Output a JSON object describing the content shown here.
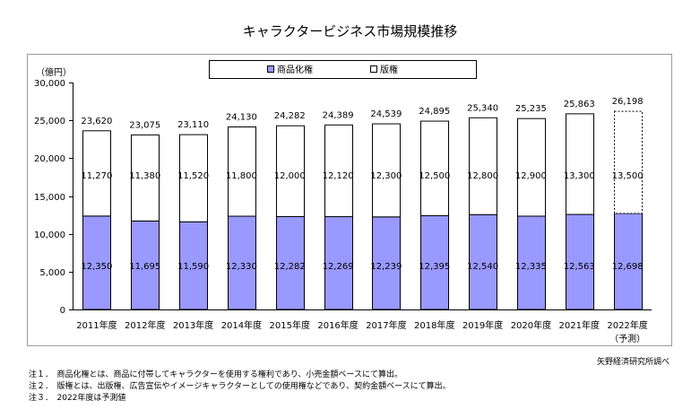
{
  "chart_data": {
    "type": "bar",
    "title": "キャラクタービジネス市場規模推移",
    "unit_label": "（億円）",
    "categories": [
      "2011年度",
      "2012年度",
      "2013年度",
      "2014年度",
      "2015年度",
      "2016年度",
      "2017年度",
      "2018年度",
      "2019年度",
      "2020年度",
      "2021年度",
      "2022年度"
    ],
    "forecast_note": "（予測）",
    "series": [
      {
        "name": "商品化権",
        "color": "#9999ff",
        "values": [
          12350,
          11695,
          11590,
          12330,
          12282,
          12269,
          12239,
          12395,
          12540,
          12335,
          12563,
          12698
        ]
      },
      {
        "name": "版権",
        "color": "#ffffff",
        "values": [
          11270,
          11380,
          11520,
          11800,
          12000,
          12120,
          12300,
          12500,
          12800,
          12900,
          13300,
          13500
        ]
      }
    ],
    "totals": [
      23620,
      23075,
      23110,
      24130,
      24282,
      24389,
      24539,
      24895,
      25340,
      25235,
      25863,
      26198
    ],
    "value_labels": {
      "lower": [
        "12,350",
        "11,695",
        "11,590",
        "12,330",
        "12,282",
        "12,269",
        "12,239",
        "12,395",
        "12,540",
        "12,335",
        "12,563",
        "12,698"
      ],
      "upper": [
        "11,270",
        "11,380",
        "11,520",
        "11,800",
        "12,000",
        "12,120",
        "12,300",
        "12,500",
        "12,800",
        "12,900",
        "13,300",
        "13,500"
      ],
      "totals": [
        "23,620",
        "23,075",
        "23,110",
        "24,130",
        "24,282",
        "24,389",
        "24,539",
        "24,895",
        "25,340",
        "25,235",
        "25,863",
        "26,198"
      ]
    },
    "ylim": [
      0,
      30000
    ],
    "yticks": [
      0,
      5000,
      10000,
      15000,
      20000,
      25000,
      30000
    ],
    "ytick_labels": [
      "0",
      "5,000",
      "10,000",
      "15,000",
      "20,000",
      "25,000",
      "30,000"
    ],
    "grid": false,
    "legend_position": "top-center"
  },
  "source": "矢野経済研究所調べ",
  "notes": [
    "注１．　商品化権とは、商品に付帯してキャラクターを使用する権利であり、小売金額ベースにて算出。",
    "注２．　版権とは、出版権、広告宣伝やイメージキャラクターとしての使用権などであり、契約金額ベースにて算出。",
    "注３．　2022年度は予測値"
  ]
}
